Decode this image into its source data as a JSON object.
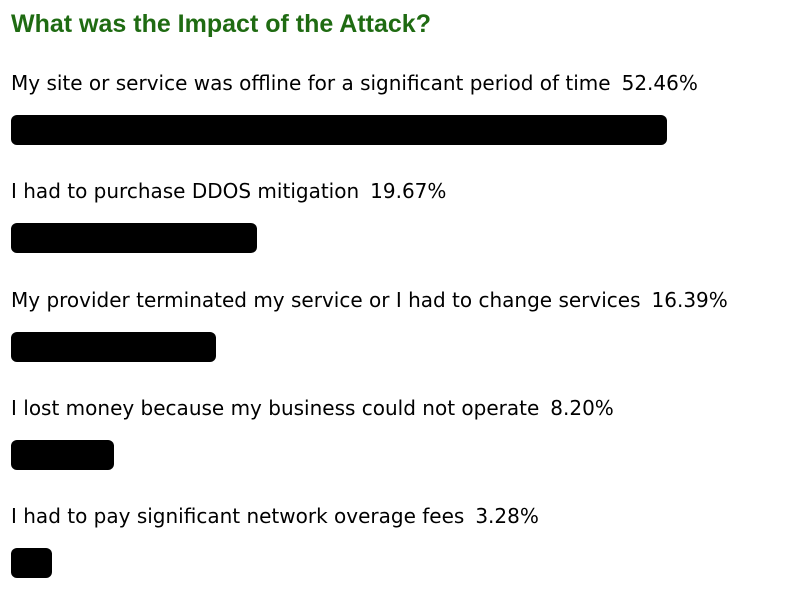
{
  "chart_data": {
    "type": "bar",
    "orientation": "horizontal",
    "title": "What was the Impact of the Attack?",
    "categories": [
      "My site or service was offline for a significant period of time",
      "I had to purchase DDOS mitigation",
      "My provider terminated my service or I had to change services",
      "I lost money because my business could not operate",
      "I had to pay significant network overage fees"
    ],
    "values": [
      52.46,
      19.67,
      16.39,
      8.2,
      3.28
    ],
    "value_labels": [
      "52.46%",
      "19.67%",
      "16.39%",
      "8.20%",
      "3.28%"
    ],
    "unit": "%",
    "bar_color": "#000000",
    "title_color": "#1f6b12",
    "grid": false,
    "legend": "none"
  }
}
